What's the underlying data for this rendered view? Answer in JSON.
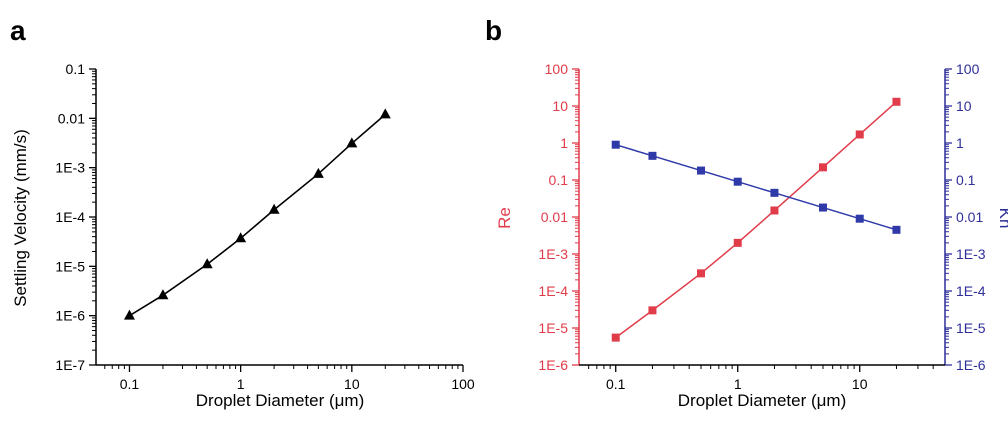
{
  "chart_data": [
    {
      "panel_label": "a",
      "type": "line",
      "xlabel": "Droplet Diameter (μm)",
      "ylabel": "Settling Velocity (mm/s)",
      "x_scale": "log",
      "y_scale": "log",
      "xlim": [
        0.05,
        100
      ],
      "ylim": [
        1e-07,
        0.1
      ],
      "x_ticks": [
        0.1,
        1,
        10,
        100
      ],
      "x_tick_labels": [
        "0.1",
        "1",
        "10",
        "100"
      ],
      "y_ticks": [
        1e-07,
        1e-06,
        1e-05,
        0.0001,
        0.001,
        0.01,
        0.1
      ],
      "y_tick_labels": [
        "1E-7",
        "1E-6",
        "1E-5",
        "1E-4",
        "1E-3",
        "0.01",
        "0.1"
      ],
      "series": [
        {
          "marker": "triangle",
          "color": "#000000",
          "x": [
            0.1,
            0.2,
            0.5,
            1,
            2,
            5,
            10,
            20
          ],
          "y": [
            1e-06,
            2.6e-06,
            1.1e-05,
            3.7e-05,
            0.00014,
            0.00075,
            0.0031,
            0.012
          ]
        }
      ]
    },
    {
      "panel_label": "b",
      "type": "line",
      "xlabel": "Droplet Diameter (μm)",
      "ylabel": "Re",
      "ylabel_right": "Kn",
      "x_scale": "log",
      "y_scale": "log",
      "xlim": [
        0.05,
        50
      ],
      "ylim": [
        1e-06,
        100
      ],
      "ylim_right": [
        1e-06,
        100
      ],
      "x_ticks": [
        0.1,
        1,
        10
      ],
      "x_tick_labels": [
        "0.1",
        "1",
        "10"
      ],
      "y_ticks": [
        1e-06,
        1e-05,
        0.0001,
        0.001,
        0.01,
        0.1,
        1,
        10,
        100
      ],
      "y_tick_labels": [
        "1E-6",
        "1E-5",
        "1E-4",
        "1E-3",
        "0.01",
        "0.1",
        "1",
        "10",
        "100"
      ],
      "left_axis_color": "#e03c4a",
      "right_axis_color": "#2f2f9a",
      "series": [
        {
          "axis": "left",
          "marker": "square",
          "color": "#e03c4a",
          "x": [
            0.1,
            0.2,
            0.5,
            1,
            2,
            5,
            10,
            20
          ],
          "y": [
            5.5e-06,
            3e-05,
            0.0003,
            0.002,
            0.015,
            0.22,
            1.7,
            13
          ]
        },
        {
          "axis": "right",
          "marker": "square",
          "color": "#2f3aa8",
          "x": [
            0.1,
            0.2,
            0.5,
            1,
            2,
            5,
            10,
            20
          ],
          "y": [
            0.9,
            0.45,
            0.18,
            0.09,
            0.045,
            0.018,
            0.009,
            0.0045
          ]
        }
      ]
    }
  ]
}
